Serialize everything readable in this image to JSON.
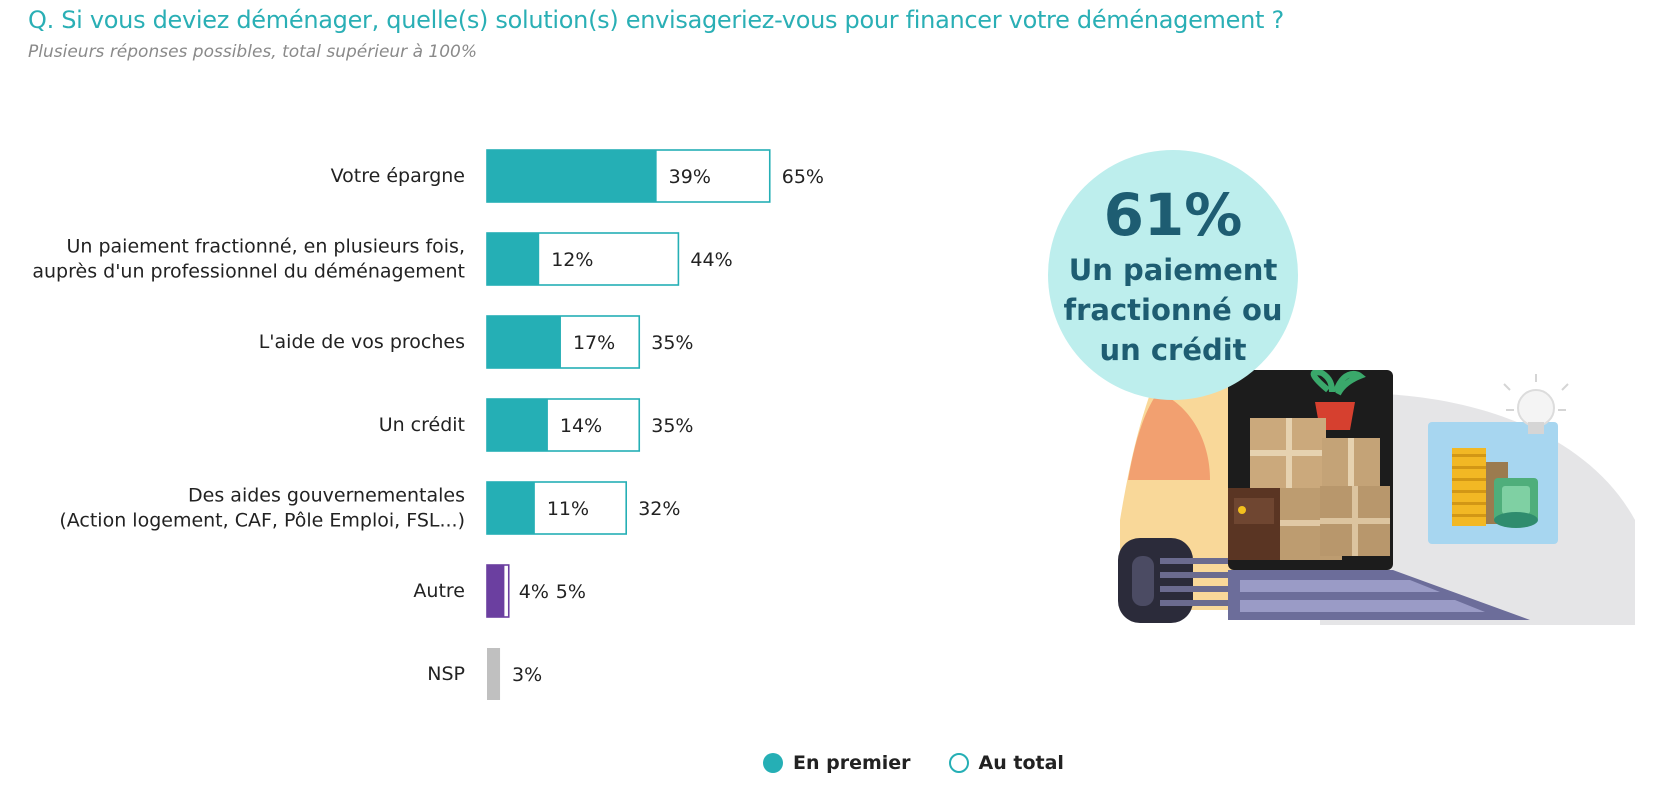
{
  "header": {
    "question": "Q. Si vous deviez déménager, quelle(s) solution(s) envisageriez-vous pour financer votre déménagement ?",
    "subtitle": "Plusieurs réponses possibles, total supérieur à 100%"
  },
  "colors": {
    "teal": "#25afb5",
    "purple": "#6b3fa0",
    "gray": "#c0c0c0",
    "question_text": "#2aafb5",
    "bubble_bg": "#bdeeed",
    "bubble_text": "#1e5d72"
  },
  "highlight": {
    "value": "61%",
    "label": "Un paiement fractionné ou un crédit"
  },
  "illustration": {
    "icon": "moving-truck-with-boxes-coins-banknotes-lightbulb-icon"
  },
  "chart_data": {
    "type": "bar",
    "orientation": "horizontal",
    "categories": [
      "Votre épargne",
      "Un paiement fractionné, en plusieurs fois, auprès d'un professionnel du déménagement",
      "L'aide de vos proches",
      "Un crédit",
      "Des aides gouvernementales (Action logement, CAF, Pôle Emploi, FSL...)",
      "Autre",
      "NSP"
    ],
    "category_lines": [
      [
        "Votre épargne"
      ],
      [
        "Un paiement fractionné, en plusieurs fois,",
        "auprès d'un professionnel du déménagement"
      ],
      [
        "L'aide de vos proches"
      ],
      [
        "Un crédit"
      ],
      [
        "Des aides gouvernementales",
        "(Action logement, CAF, Pôle Emploi, FSL...)"
      ],
      [
        "Autre"
      ],
      [
        "NSP"
      ]
    ],
    "series": [
      {
        "name": "En premier",
        "values": [
          39,
          12,
          17,
          14,
          11,
          4,
          null
        ],
        "labels": [
          "39%",
          "12%",
          "17%",
          "14%",
          "11%",
          "4%",
          ""
        ]
      },
      {
        "name": "Au total",
        "values": [
          65,
          44,
          35,
          35,
          32,
          5,
          3
        ],
        "labels": [
          "65%",
          "44%",
          "35%",
          "35%",
          "32%",
          "5%",
          "3%"
        ]
      }
    ],
    "bar_colors": [
      "#25afb5",
      "#25afb5",
      "#25afb5",
      "#25afb5",
      "#25afb5",
      "#6b3fa0",
      "#c0c0c0"
    ],
    "unit": "%",
    "xlim": [
      0,
      100
    ],
    "grid": false,
    "legend_position": "bottom"
  }
}
